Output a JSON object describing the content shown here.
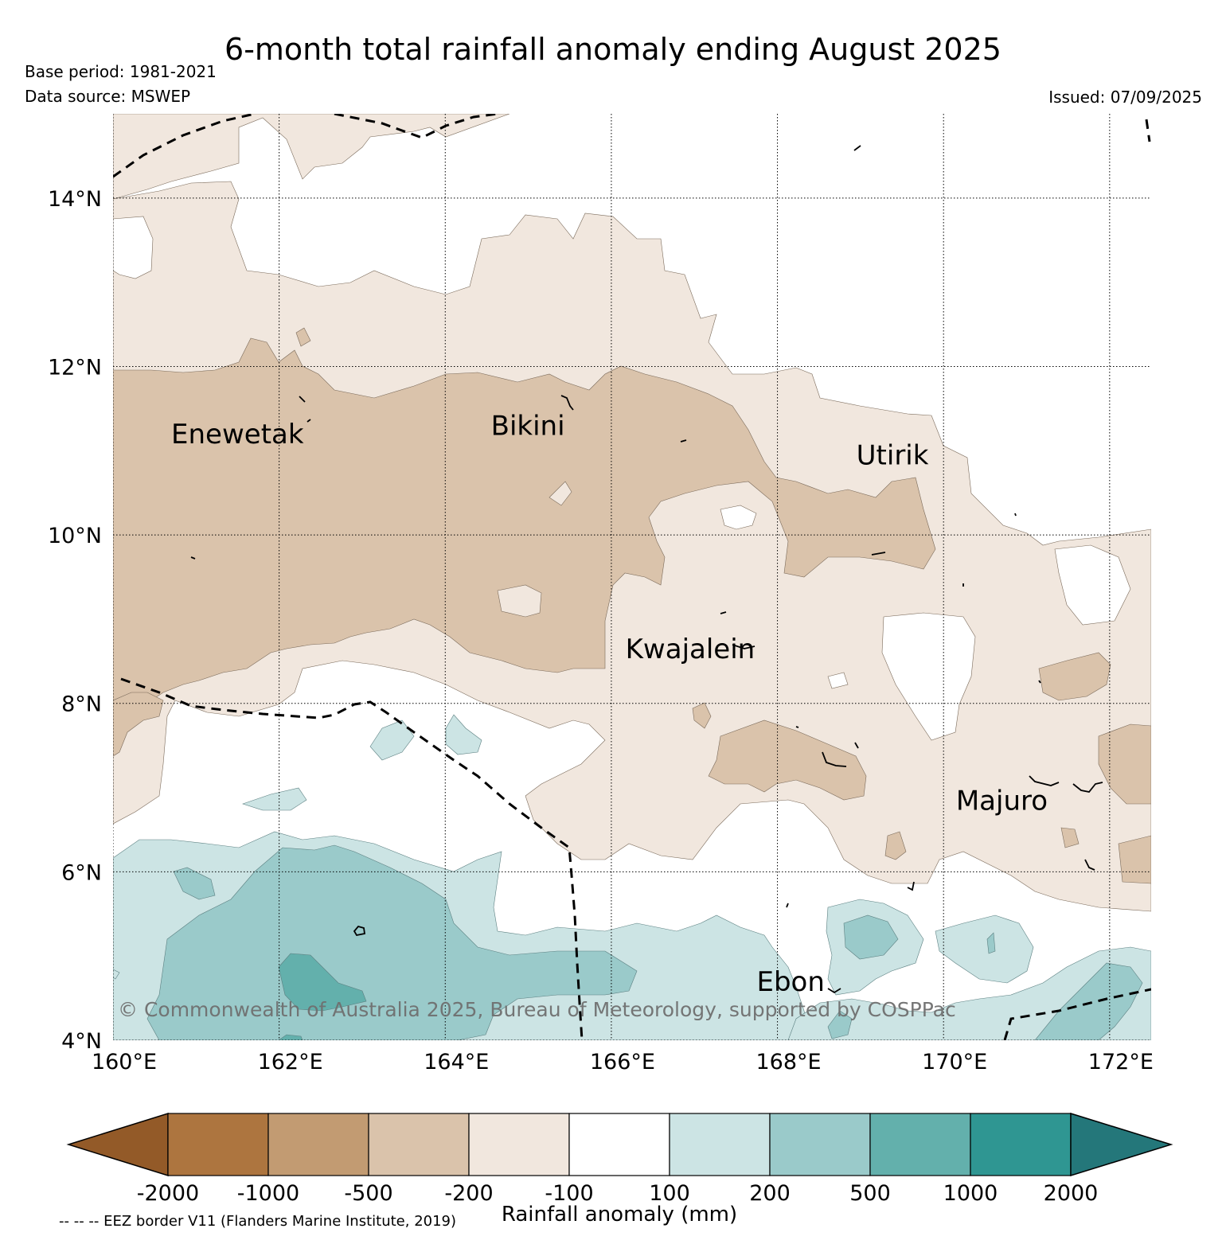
{
  "title": "6-month total rainfall anomaly ending August 2025",
  "base_period": "Base period: 1981-2021",
  "data_source": "Data source: MSWEP",
  "issued": "Issued: 07/09/2025",
  "copyright": "© Commonwealth of Australia 2025, Bureau of Meteorology, supported by COSPPac",
  "map": {
    "lon_range": [
      160,
      172.5
    ],
    "lat_range": [
      4,
      15
    ],
    "lon_ticks": [
      {
        "value": 160,
        "label": "160°E"
      },
      {
        "value": 162,
        "label": "162°E"
      },
      {
        "value": 164,
        "label": "164°E"
      },
      {
        "value": 166,
        "label": "166°E"
      },
      {
        "value": 168,
        "label": "168°E"
      },
      {
        "value": 170,
        "label": "170°E"
      },
      {
        "value": 172,
        "label": "172°E"
      }
    ],
    "lat_ticks": [
      {
        "value": 4,
        "label": "4°N"
      },
      {
        "value": 6,
        "label": "6°N"
      },
      {
        "value": 8,
        "label": "8°N"
      },
      {
        "value": 10,
        "label": "10°N"
      },
      {
        "value": 12,
        "label": "12°N"
      },
      {
        "value": 14,
        "label": "14°N"
      }
    ],
    "places": [
      {
        "name": "Enewetak",
        "lon": 160.7,
        "lat": 11.2
      },
      {
        "name": "Bikini",
        "lon": 164.55,
        "lat": 11.3
      },
      {
        "name": "Utirik",
        "lon": 168.95,
        "lat": 10.95
      },
      {
        "name": "Kwajalein",
        "lon": 166.17,
        "lat": 8.65
      },
      {
        "name": "Majuro",
        "lon": 170.15,
        "lat": 6.85
      },
      {
        "name": "Ebon",
        "lon": 167.75,
        "lat": 4.7
      }
    ]
  },
  "colorbar": {
    "title": "Rainfall anomaly (mm)",
    "ticks": [
      "-2000",
      "-1000",
      "-500",
      "-200",
      "-100",
      "100",
      "200",
      "500",
      "1000",
      "2000"
    ],
    "colors": {
      "under": "#935a28",
      "bins": [
        "#ad753f",
        "#c29b72",
        "#dac3ab",
        "#f1e7de",
        "#ffffff",
        "#cce4e4",
        "#9acaca",
        "#63b0ac",
        "#2f9692"
      ],
      "over": "#24777a"
    }
  },
  "eez_note": "-- -- -- EEZ border V11 (Flanders Marine Institute, 2019)"
}
